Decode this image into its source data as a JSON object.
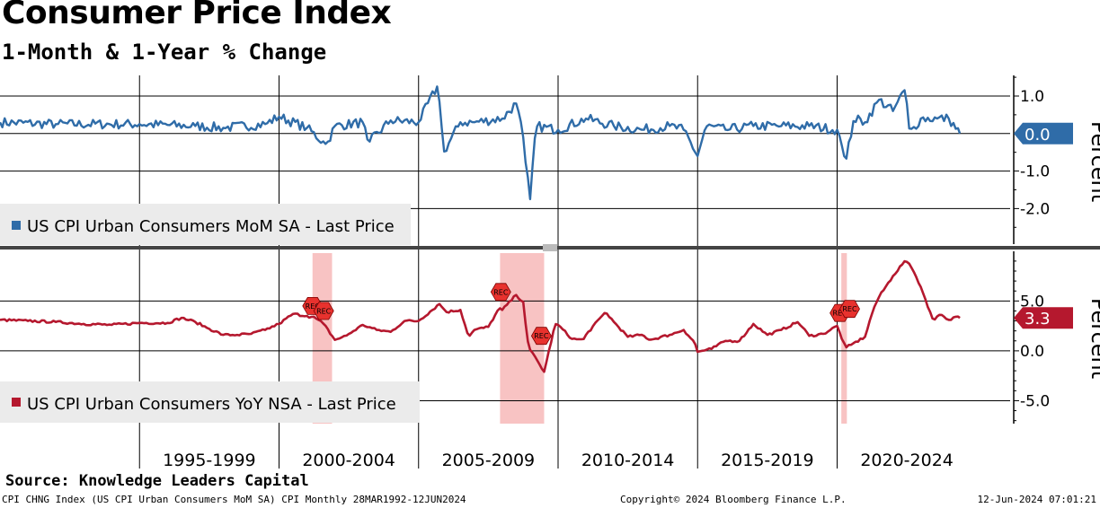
{
  "header": {
    "title": "Consumer Price Index",
    "subtitle": "1-Month & 1-Year % Change"
  },
  "colors": {
    "mom_line": "#2f6ca8",
    "yoy_line": "#b5182e",
    "recession_shade": "#f7b9b9",
    "recession_marker": "#e8322e",
    "legend_bg": "#ebebeb"
  },
  "chart_data": [
    {
      "panel": "top",
      "type": "line",
      "series_name": "US CPI Urban Consumers MoM SA - Last Price",
      "ylabel": "Percent",
      "ylim": [
        -2.9,
        1.55
      ],
      "yticks": [
        1.0,
        0.0,
        -1.0,
        -2.0
      ],
      "ytick_labels": [
        "1.0",
        "",
        "-1.0",
        "-2.0"
      ],
      "last_value": 0.0,
      "last_value_label": "0.0",
      "x_range": [
        1990.0,
        2026.2
      ],
      "anchors": [
        [
          1990.0,
          0.3
        ],
        [
          1992.0,
          0.25
        ],
        [
          1995.0,
          0.25
        ],
        [
          1997.0,
          0.2
        ],
        [
          1998.0,
          0.15
        ],
        [
          1999.5,
          0.25
        ],
        [
          2000.0,
          0.45
        ],
        [
          2001.0,
          0.15
        ],
        [
          2001.7,
          -0.3
        ],
        [
          2002.0,
          0.2
        ],
        [
          2003.0,
          0.3
        ],
        [
          2003.2,
          -0.25
        ],
        [
          2004.0,
          0.35
        ],
        [
          2005.0,
          0.3
        ],
        [
          2005.7,
          1.3
        ],
        [
          2005.9,
          -0.5
        ],
        [
          2006.5,
          0.3
        ],
        [
          2007.0,
          0.3
        ],
        [
          2008.0,
          0.4
        ],
        [
          2008.5,
          0.8
        ],
        [
          2008.75,
          -0.1
        ],
        [
          2008.85,
          -0.9
        ],
        [
          2009.0,
          -1.75
        ],
        [
          2009.2,
          0.2
        ],
        [
          2010.0,
          0.1
        ],
        [
          2011.0,
          0.4
        ],
        [
          2012.0,
          0.2
        ],
        [
          2013.0,
          0.1
        ],
        [
          2014.0,
          0.2
        ],
        [
          2014.5,
          0.1
        ],
        [
          2015.0,
          -0.6
        ],
        [
          2015.3,
          0.2
        ],
        [
          2016.0,
          0.1
        ],
        [
          2017.0,
          0.2
        ],
        [
          2018.0,
          0.2
        ],
        [
          2019.0,
          0.2
        ],
        [
          2020.0,
          0.1
        ],
        [
          2020.2,
          -0.4
        ],
        [
          2020.3,
          -0.8
        ],
        [
          2020.6,
          0.4
        ],
        [
          2021.0,
          0.3
        ],
        [
          2021.5,
          0.9
        ],
        [
          2022.0,
          0.6
        ],
        [
          2022.45,
          1.2
        ],
        [
          2022.6,
          0.0
        ],
        [
          2023.0,
          0.4
        ],
        [
          2023.6,
          0.4
        ],
        [
          2024.0,
          0.4
        ],
        [
          2024.4,
          0.0
        ]
      ]
    },
    {
      "panel": "bottom",
      "type": "line",
      "series_name": "US CPI Urban Consumers YoY NSA - Last Price",
      "ylabel": "Percent",
      "ylim": [
        -7.3,
        9.8
      ],
      "yticks": [
        5.0,
        0.0,
        -5.0
      ],
      "ytick_labels": [
        "5.0",
        "0.0",
        "-5.0"
      ],
      "last_value": 3.3,
      "last_value_label": "3.3",
      "x_range": [
        1990.0,
        2026.2
      ],
      "anchors": [
        [
          1990.0,
          3.1
        ],
        [
          1991.0,
          3.0
        ],
        [
          1992.0,
          2.9
        ],
        [
          1993.0,
          2.7
        ],
        [
          1994.0,
          2.6
        ],
        [
          1995.0,
          2.8
        ],
        [
          1996.0,
          2.8
        ],
        [
          1996.5,
          3.3
        ],
        [
          1997.0,
          2.9
        ],
        [
          1997.5,
          2.2
        ],
        [
          1998.0,
          1.6
        ],
        [
          1998.5,
          1.6
        ],
        [
          1999.0,
          1.7
        ],
        [
          1999.5,
          2.1
        ],
        [
          2000.0,
          2.7
        ],
        [
          2000.5,
          3.7
        ],
        [
          2001.0,
          3.5
        ],
        [
          2001.3,
          3.3
        ],
        [
          2001.6,
          2.7
        ],
        [
          2002.0,
          1.1
        ],
        [
          2002.4,
          1.5
        ],
        [
          2003.0,
          2.6
        ],
        [
          2003.5,
          2.1
        ],
        [
          2004.0,
          1.9
        ],
        [
          2004.5,
          3.0
        ],
        [
          2005.0,
          3.0
        ],
        [
          2005.75,
          4.7
        ],
        [
          2006.0,
          3.9
        ],
        [
          2006.5,
          4.1
        ],
        [
          2006.8,
          1.4
        ],
        [
          2007.0,
          2.1
        ],
        [
          2007.5,
          2.4
        ],
        [
          2007.9,
          4.3
        ],
        [
          2008.0,
          4.1
        ],
        [
          2008.5,
          5.6
        ],
        [
          2008.75,
          4.9
        ],
        [
          2008.9,
          1.1
        ],
        [
          2009.0,
          0.1
        ],
        [
          2009.5,
          -2.1
        ],
        [
          2009.9,
          2.7
        ],
        [
          2010.0,
          2.6
        ],
        [
          2010.5,
          1.2
        ],
        [
          2010.9,
          1.1
        ],
        [
          2011.0,
          1.6
        ],
        [
          2011.7,
          3.9
        ],
        [
          2012.0,
          2.9
        ],
        [
          2012.5,
          1.4
        ],
        [
          2013.0,
          1.6
        ],
        [
          2013.3,
          1.1
        ],
        [
          2014.0,
          1.6
        ],
        [
          2014.5,
          2.1
        ],
        [
          2014.9,
          0.8
        ],
        [
          2015.0,
          -0.1
        ],
        [
          2015.5,
          0.2
        ],
        [
          2016.0,
          1.0
        ],
        [
          2016.5,
          1.0
        ],
        [
          2017.0,
          2.7
        ],
        [
          2017.5,
          1.6
        ],
        [
          2018.0,
          2.1
        ],
        [
          2018.6,
          2.9
        ],
        [
          2019.0,
          1.5
        ],
        [
          2019.5,
          1.7
        ],
        [
          2020.0,
          2.5
        ],
        [
          2020.3,
          0.3
        ],
        [
          2020.5,
          0.6
        ],
        [
          2021.0,
          1.4
        ],
        [
          2021.3,
          4.2
        ],
        [
          2021.5,
          5.4
        ],
        [
          2022.0,
          7.5
        ],
        [
          2022.45,
          9.1
        ],
        [
          2022.7,
          8.2
        ],
        [
          2023.0,
          6.4
        ],
        [
          2023.45,
          3.0
        ],
        [
          2023.7,
          3.7
        ],
        [
          2024.0,
          3.1
        ],
        [
          2024.3,
          3.5
        ],
        [
          2024.4,
          3.3
        ]
      ],
      "recessions": [
        [
          2001.2,
          2001.9
        ],
        [
          2007.92,
          2009.5
        ],
        [
          2020.15,
          2020.35
        ]
      ],
      "recession_markers": [
        {
          "x": 2001.2,
          "y": 4.5,
          "label": "REC"
        },
        {
          "x": 2001.6,
          "y": 4.0,
          "label": "REC"
        },
        {
          "x": 2007.95,
          "y": 5.9,
          "label": "REC"
        },
        {
          "x": 2009.4,
          "y": 1.5,
          "label": "REC"
        },
        {
          "x": 2020.1,
          "y": 3.8,
          "label": "REC"
        },
        {
          "x": 2020.45,
          "y": 4.2,
          "label": "REC"
        }
      ]
    }
  ],
  "x_axis": {
    "period_labels": [
      "1995-1999",
      "2000-2004",
      "2005-2009",
      "2010-2014",
      "2015-2019",
      "2020-2024"
    ],
    "period_starts": [
      1995,
      2000,
      2005,
      2010,
      2015,
      2020
    ]
  },
  "footer": {
    "source": "Source: Knowledge Leaders Capital",
    "left": "CPI CHNG Index (US CPI Urban Consumers MoM SA) CPI  Monthly 28MAR1992-12JUN2024",
    "center": "Copyright© 2024 Bloomberg Finance L.P.",
    "right": "12-Jun-2024 07:01:21"
  }
}
